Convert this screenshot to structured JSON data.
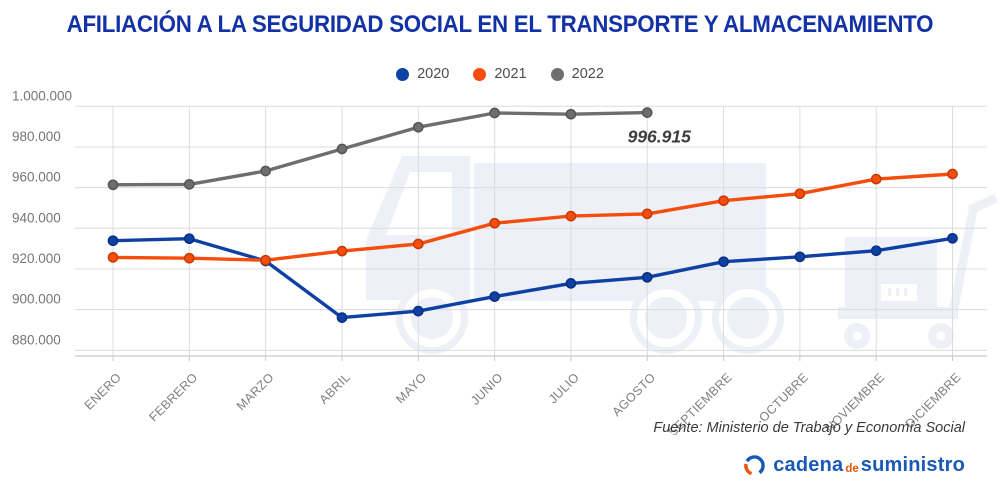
{
  "title": "AFILIACIÓN A LA SEGURIDAD SOCIAL EN EL TRANSPORTE Y ALMACENAMIENTO",
  "source": "Fuente: Ministerio de Trabajo y Economía Social",
  "logo": {
    "word1": "cadena",
    "word2": "de",
    "word3": "suministro"
  },
  "chart_data": {
    "type": "line",
    "title": "AFILIACIÓN A LA SEGURIDAD SOCIAL EN EL TRANSPORTE Y ALMACENAMIENTO",
    "categories": [
      "ENERO",
      "FEBRERO",
      "MARZO",
      "ABRIL",
      "MAYO",
      "JUNIO",
      "JULIO",
      "AGOSTO",
      "SEPTIEMBRE",
      "OCTUBRE",
      "NOVIEMBRE",
      "DICIEMBRE"
    ],
    "y_ticks": [
      "1.000.000",
      "980.000",
      "960.000",
      "940.000",
      "920.000",
      "900.000",
      "880.000"
    ],
    "ylim": [
      880000,
      1000000
    ],
    "y_tick_step": 20000,
    "grid": true,
    "legend_position": "top",
    "series": [
      {
        "name": "2020",
        "color": "#0e41a3",
        "dot_stroke": "#0a2f80",
        "values": [
          933900,
          934900,
          923900,
          896100,
          899300,
          906400,
          912900,
          915900,
          923600,
          926000,
          929000,
          935100
        ]
      },
      {
        "name": "2021",
        "color": "#f44d0d",
        "dot_stroke": "#c43b04",
        "values": [
          925700,
          925300,
          924300,
          928800,
          932300,
          942500,
          946000,
          947100,
          953600,
          957000,
          964200,
          966700
        ]
      },
      {
        "name": "2022",
        "color": "#6e6e6e",
        "dot_stroke": "#555555",
        "values": [
          961400,
          961600,
          968200,
          979000,
          989700,
          996700,
          996100,
          996915
        ]
      }
    ],
    "annotation": {
      "text": "996.915",
      "series": "2022",
      "category": "AGOSTO"
    }
  }
}
